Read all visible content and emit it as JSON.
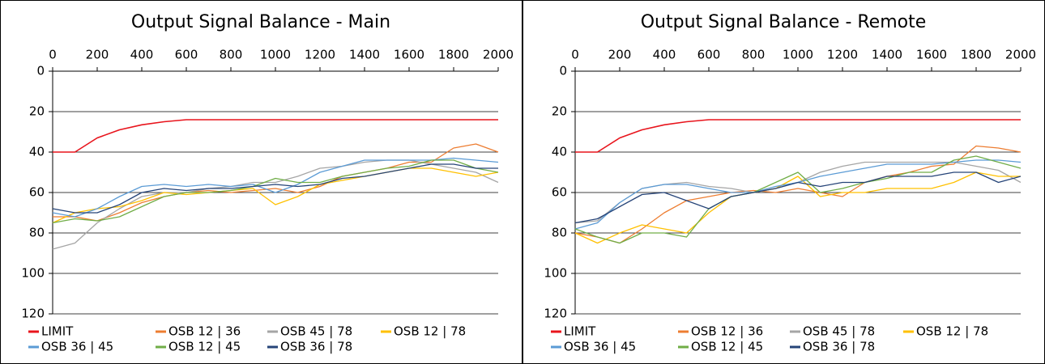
{
  "chart_data": [
    {
      "type": "line",
      "title": "Output Signal Balance - Main",
      "x": [
        0,
        100,
        200,
        300,
        400,
        500,
        600,
        700,
        800,
        900,
        1000,
        1100,
        1200,
        1300,
        1400,
        1500,
        1600,
        1700,
        1800,
        1900,
        2000
      ],
      "series": [
        {
          "name": "LIMIT",
          "color": "#e8141c",
          "values": [
            40,
            40,
            33,
            29,
            26.5,
            25,
            24,
            24,
            24,
            24,
            24,
            24,
            24,
            24,
            24,
            24,
            24,
            24,
            24,
            24,
            24
          ]
        },
        {
          "name": "OSB 12 | 36",
          "color": "#ed7d31",
          "values": [
            72,
            72,
            74,
            70,
            65,
            62,
            60,
            59,
            60,
            59,
            58,
            60,
            57,
            52,
            50,
            48,
            45,
            45,
            38,
            36,
            40
          ]
        },
        {
          "name": "OSB 45 | 78",
          "color": "#a5a5a5",
          "values": [
            88,
            85,
            75,
            68,
            62,
            60,
            60,
            58,
            57,
            55,
            55,
            52,
            48,
            47,
            45,
            44,
            44,
            46,
            48,
            50,
            55
          ]
        },
        {
          "name": "OSB 12 | 78",
          "color": "#ffc000",
          "values": [
            75,
            70,
            68,
            67,
            64,
            60,
            61,
            60,
            59,
            58,
            66,
            62,
            56,
            54,
            52,
            50,
            48,
            48,
            50,
            52,
            50
          ]
        },
        {
          "name": "OSB 36 | 45",
          "color": "#5b9bd5",
          "values": [
            70,
            72,
            68,
            62,
            57,
            56,
            57,
            56,
            57,
            56,
            60,
            56,
            50,
            47,
            44,
            44,
            44,
            44,
            43,
            44,
            45
          ]
        },
        {
          "name": "OSB 12 | 45",
          "color": "#70ad47",
          "values": [
            75,
            73,
            74,
            72,
            67,
            62,
            60,
            60,
            59,
            57,
            53,
            55,
            55,
            52,
            50,
            48,
            47,
            44,
            44,
            48,
            50
          ]
        },
        {
          "name": "OSB 36 | 78",
          "color": "#264478",
          "values": [
            68,
            70,
            70,
            66,
            60,
            58,
            59,
            58,
            58,
            57,
            56,
            57,
            56,
            53,
            52,
            50,
            48,
            46,
            46,
            48,
            48
          ]
        }
      ],
      "xlim": [
        0,
        2000
      ],
      "xticks": [
        0,
        200,
        400,
        600,
        800,
        1000,
        1200,
        1400,
        1600,
        1800,
        2000
      ],
      "ylim": [
        0,
        120
      ],
      "yticks": [
        0,
        20,
        40,
        60,
        80,
        100,
        120
      ],
      "y_reversed": true,
      "x_axis_position": "top",
      "grid": true,
      "legend": "bottom"
    },
    {
      "type": "line",
      "title": "Output Signal Balance - Remote",
      "x": [
        0,
        100,
        200,
        300,
        400,
        500,
        600,
        700,
        800,
        900,
        1000,
        1100,
        1200,
        1300,
        1400,
        1500,
        1600,
        1700,
        1800,
        1900,
        2000
      ],
      "series": [
        {
          "name": "LIMIT",
          "color": "#e8141c",
          "values": [
            40,
            40,
            33,
            29,
            26.5,
            25,
            24,
            24,
            24,
            24,
            24,
            24,
            24,
            24,
            24,
            24,
            24,
            24,
            24,
            24,
            24
          ]
        },
        {
          "name": "OSB 12 | 36",
          "color": "#ed7d31",
          "values": [
            80,
            82,
            85,
            78,
            70,
            64,
            62,
            60,
            59,
            60,
            58,
            60,
            62,
            55,
            52,
            50,
            47,
            46,
            37,
            38,
            40
          ]
        },
        {
          "name": "OSB 45 | 78",
          "color": "#a5a5a5",
          "values": [
            75,
            74,
            65,
            58,
            56,
            55,
            57,
            58,
            60,
            58,
            55,
            50,
            47,
            45,
            45,
            45,
            45,
            45,
            47,
            49,
            55
          ]
        },
        {
          "name": "OSB 12 | 78",
          "color": "#ffc000",
          "values": [
            80,
            85,
            80,
            76,
            78,
            80,
            70,
            62,
            60,
            58,
            52,
            62,
            60,
            60,
            58,
            58,
            58,
            55,
            50,
            52,
            52
          ]
        },
        {
          "name": "OSB 36 | 45",
          "color": "#5b9bd5",
          "values": [
            78,
            75,
            65,
            58,
            56,
            56,
            58,
            60,
            60,
            57,
            55,
            52,
            50,
            48,
            46,
            46,
            46,
            45,
            44,
            44,
            45
          ]
        },
        {
          "name": "OSB 12 | 45",
          "color": "#70ad47",
          "values": [
            78,
            82,
            85,
            80,
            80,
            82,
            68,
            62,
            60,
            55,
            50,
            60,
            58,
            55,
            53,
            50,
            50,
            44,
            42,
            45,
            48
          ]
        },
        {
          "name": "OSB 36 | 78",
          "color": "#264478",
          "values": [
            75,
            73,
            67,
            61,
            60,
            64,
            68,
            62,
            60,
            58,
            55,
            57,
            55,
            55,
            52,
            52,
            52,
            50,
            50,
            55,
            52
          ]
        }
      ],
      "xlim": [
        0,
        2000
      ],
      "xticks": [
        0,
        200,
        400,
        600,
        800,
        1000,
        1200,
        1400,
        1600,
        1800,
        2000
      ],
      "ylim": [
        0,
        120
      ],
      "yticks": [
        0,
        20,
        40,
        60,
        80,
        100,
        120
      ],
      "y_reversed": true,
      "x_axis_position": "top",
      "grid": true,
      "legend": "bottom"
    }
  ]
}
